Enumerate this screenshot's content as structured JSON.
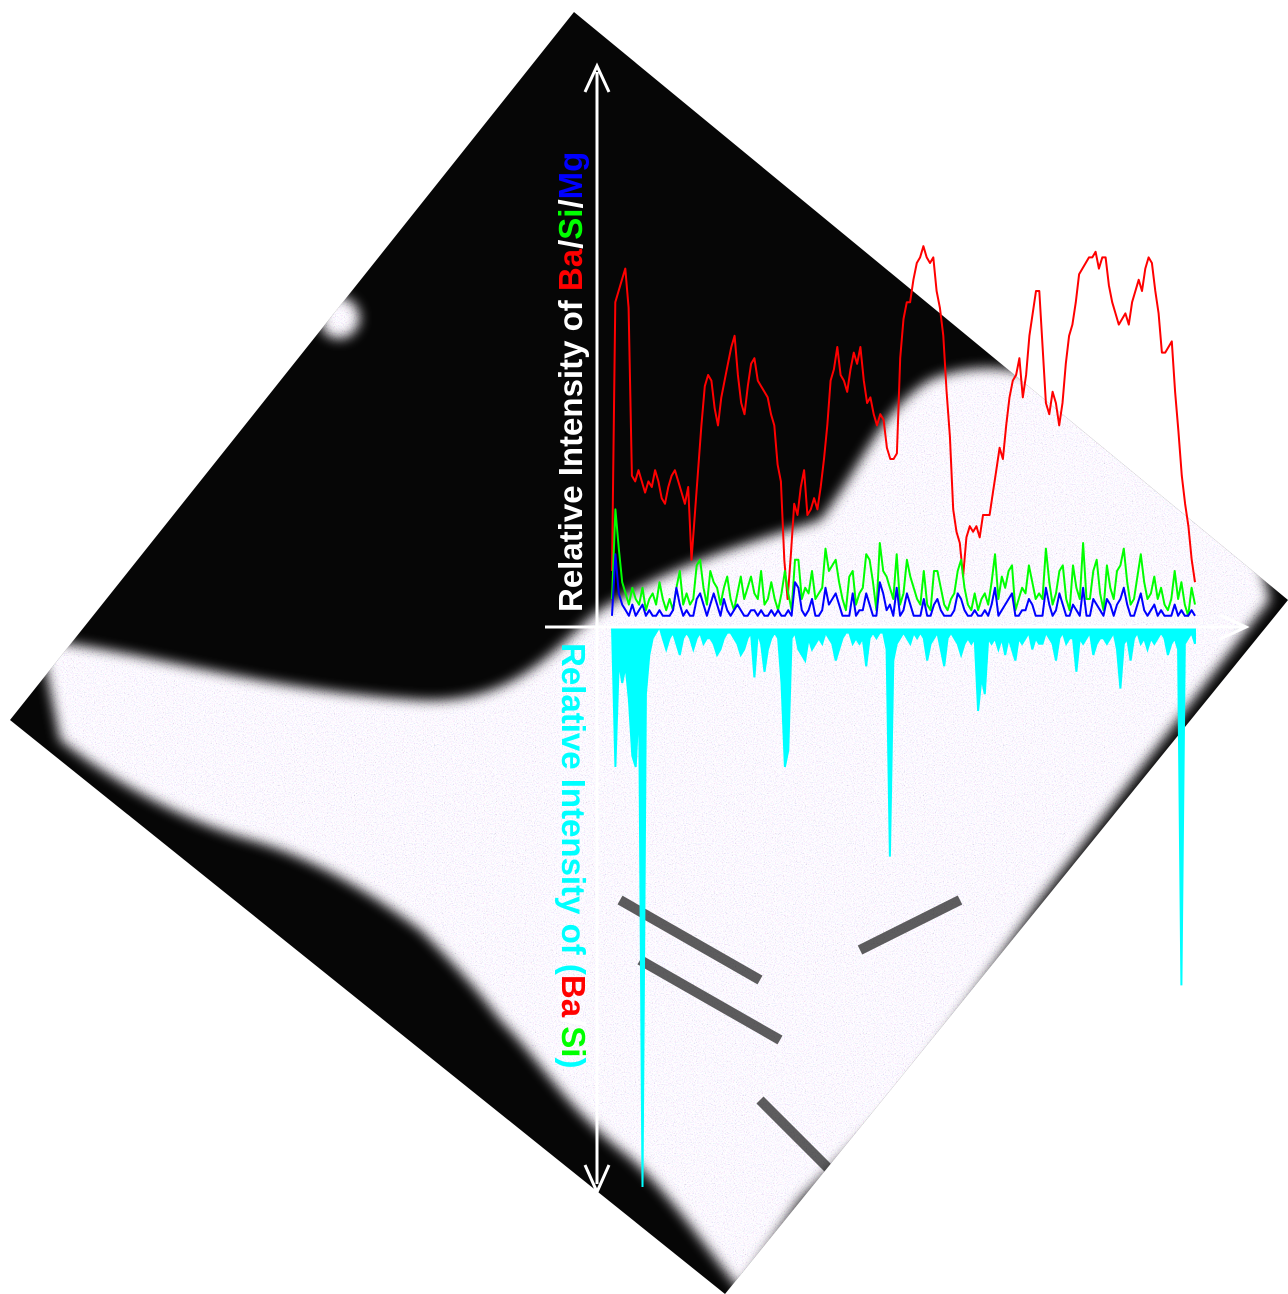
{
  "chart_data": {
    "type": "line",
    "title": "",
    "xlabel": "",
    "y_upper_label": {
      "prefix": "Relative Intensity of ",
      "parts": [
        {
          "text": "Ba",
          "color": "#ff0000"
        },
        {
          "text": "/",
          "color": "#ffffff"
        },
        {
          "text": "Si",
          "color": "#00ff00"
        },
        {
          "text": "/",
          "color": "#ffffff"
        },
        {
          "text": "Mg",
          "color": "#0000ff"
        }
      ]
    },
    "y_lower_label": {
      "prefix": "Relative Intensity of ",
      "parts": [
        {
          "text": "(",
          "color": "#00ffff"
        },
        {
          "text": "Ba",
          "color": "#ff0000"
        },
        {
          "text": "/",
          "color": "#ffffff"
        },
        {
          "text": "Si",
          "color": "#00ff00"
        },
        {
          "text": ")",
          "color": "#00ffff"
        }
      ]
    },
    "grid": false,
    "legend": "none",
    "ylim_upper": [
      0,
      100
    ],
    "ylim_lower": [
      0,
      100
    ],
    "series": [
      {
        "color": "#ff0000",
        "values": [
          10,
          58,
          60,
          62,
          64,
          57,
          27,
          26,
          28,
          26,
          24,
          26,
          25,
          28,
          26,
          23,
          22,
          25,
          27,
          28,
          26,
          24,
          22,
          25,
          12,
          20,
          28,
          36,
          43,
          45,
          44,
          39,
          36,
          41,
          44,
          47,
          50,
          52,
          45,
          40,
          38,
          43,
          47,
          48,
          44,
          43,
          42,
          41,
          38,
          36,
          29,
          26,
          12,
          5,
          13,
          22,
          20,
          25,
          28,
          20,
          21,
          23,
          21,
          25,
          30,
          36,
          44,
          46,
          50,
          45,
          44,
          42,
          46,
          49,
          47,
          50,
          44,
          40,
          41,
          38,
          36,
          38,
          37,
          32,
          30,
          30,
          31,
          48,
          55,
          58,
          58,
          62,
          65,
          66,
          68,
          66,
          65,
          66,
          60,
          57,
          52,
          42,
          34,
          21,
          17,
          15,
          9,
          16,
          18,
          17,
          18,
          16,
          20,
          20,
          20,
          24,
          28,
          32,
          30,
          36,
          41,
          44,
          45,
          48,
          41,
          45,
          52,
          56,
          60,
          60,
          50,
          40,
          38,
          42,
          40,
          36,
          40,
          47,
          52,
          54,
          58,
          63,
          64,
          65,
          66,
          66,
          67,
          64,
          66,
          66,
          61,
          58,
          56,
          54,
          55,
          56,
          54,
          58,
          60,
          62,
          60,
          64,
          66,
          65,
          60,
          56,
          49,
          49,
          50,
          51,
          42,
          35,
          27,
          22,
          18,
          12,
          8
        ],
        "baseline_level": 8
      },
      {
        "color": "#00ff00",
        "values": [
          5,
          21,
          14,
          8,
          6,
          4,
          7,
          5,
          4,
          7,
          3,
          5,
          6,
          4,
          8,
          5,
          3,
          5,
          3,
          7,
          10,
          4,
          6,
          4,
          5,
          11,
          12,
          7,
          4,
          10,
          8,
          7,
          4,
          7,
          9,
          5,
          3,
          6,
          9,
          5,
          7,
          9,
          6,
          5,
          10,
          4,
          5,
          8,
          5,
          3,
          6,
          10,
          6,
          3,
          12,
          12,
          5,
          7,
          6,
          10,
          5,
          6,
          7,
          14,
          10,
          11,
          12,
          8,
          5,
          3,
          9,
          10,
          4,
          6,
          7,
          13,
          12,
          8,
          3,
          15,
          10,
          9,
          7,
          5,
          13,
          4,
          6,
          12,
          9,
          7,
          5,
          4,
          10,
          4,
          3,
          10,
          10,
          7,
          4,
          3,
          5,
          6,
          10,
          12,
          7,
          4,
          3,
          6,
          3,
          5,
          6,
          4,
          8,
          13,
          5,
          9,
          7,
          10,
          11,
          3,
          5,
          7,
          6,
          11,
          8,
          5,
          6,
          5,
          14,
          8,
          4,
          6,
          10,
          11,
          5,
          3,
          11,
          7,
          5,
          15,
          5,
          5,
          10,
          12,
          6,
          3,
          11,
          7,
          5,
          10,
          11,
          14,
          8,
          4,
          5,
          9,
          13,
          8,
          5,
          6,
          9,
          5,
          7,
          4,
          3,
          5,
          10,
          5,
          8,
          4,
          2,
          7,
          4
        ],
        "baseline_level": 3
      },
      {
        "color": "#0000ff",
        "values": [
          2,
          13,
          6,
          4,
          3,
          2,
          4,
          2,
          3,
          4,
          2,
          3,
          2,
          2,
          3,
          2,
          2,
          2,
          3,
          7,
          4,
          2,
          3,
          2,
          2,
          5,
          6,
          4,
          2,
          4,
          6,
          4,
          2,
          5,
          3,
          2,
          3,
          4,
          3,
          2,
          2,
          3,
          3,
          2,
          3,
          2,
          2,
          3,
          2,
          3,
          2,
          2,
          3,
          2,
          8,
          7,
          3,
          2,
          3,
          5,
          2,
          2,
          3,
          7,
          4,
          5,
          6,
          4,
          2,
          2,
          2,
          6,
          2,
          3,
          3,
          6,
          4,
          2,
          2,
          8,
          6,
          3,
          4,
          2,
          7,
          2,
          3,
          6,
          4,
          2,
          2,
          2,
          5,
          2,
          2,
          4,
          5,
          3,
          2,
          2,
          2,
          3,
          6,
          5,
          3,
          2,
          2,
          3,
          2,
          2,
          3,
          2,
          4,
          7,
          2,
          3,
          4,
          5,
          6,
          2,
          2,
          3,
          3,
          5,
          4,
          2,
          2,
          2,
          7,
          4,
          2,
          3,
          6,
          4,
          2,
          2,
          4,
          3,
          2,
          7,
          2,
          2,
          5,
          4,
          3,
          2,
          5,
          4,
          2,
          4,
          5,
          7,
          4,
          2,
          2,
          4,
          6,
          3,
          2,
          3,
          4,
          2,
          3,
          2,
          2,
          2,
          4,
          2,
          3,
          2,
          2,
          3,
          2
        ],
        "baseline_level": 1
      },
      {
        "color": "#00ffff",
        "direction": "down",
        "values": [
          0,
          7,
          6,
          10,
          8,
          13,
          16,
          17,
          13,
          5,
          12,
          5,
          2,
          1,
          0,
          2,
          4,
          2,
          1,
          3,
          5,
          2,
          1,
          2,
          4,
          2,
          1,
          3,
          2,
          2,
          3,
          5,
          4,
          2,
          1,
          1,
          2,
          3,
          5,
          4,
          2,
          1,
          2,
          1,
          3,
          8,
          4,
          2,
          1,
          2,
          10,
          6,
          3,
          2,
          1,
          4,
          5,
          6,
          2,
          4,
          3,
          2,
          3,
          1,
          2,
          3,
          6,
          4,
          2,
          1,
          1,
          3,
          2,
          3,
          2,
          7,
          2,
          1,
          2,
          1,
          1,
          4,
          30,
          6,
          3,
          2,
          1,
          2,
          3,
          1,
          2,
          1,
          2,
          6,
          3,
          2,
          1,
          4,
          7,
          2,
          1,
          2,
          3,
          5,
          3,
          2,
          3,
          2,
          7,
          9,
          3,
          2,
          3,
          2,
          4,
          2,
          5,
          2,
          4,
          6,
          2,
          3,
          2,
          1,
          4,
          2,
          3,
          3,
          1,
          2,
          3,
          6,
          2,
          1,
          3,
          2,
          2,
          8,
          2,
          3,
          2,
          1,
          5,
          3,
          2,
          2,
          3,
          2,
          1,
          4,
          2,
          3,
          2,
          6,
          2,
          1,
          3,
          2,
          4,
          2,
          3,
          2,
          1,
          2,
          5,
          3,
          2,
          4,
          2,
          3,
          2,
          1,
          3
        ],
        "spikes": [
          {
            "index": 1,
            "value": 25
          },
          {
            "index": 4,
            "value": 7
          },
          {
            "index": 6,
            "value": 23
          },
          {
            "index": 7,
            "value": 25
          },
          {
            "index": 9,
            "value": 100
          },
          {
            "index": 42,
            "value": 9
          },
          {
            "index": 51,
            "value": 25
          },
          {
            "index": 52,
            "value": 22
          },
          {
            "index": 82,
            "value": 41
          },
          {
            "index": 108,
            "value": 15
          },
          {
            "index": 110,
            "value": 12
          },
          {
            "index": 150,
            "value": 11
          },
          {
            "index": 168,
            "value": 64
          }
        ]
      }
    ]
  },
  "background": {
    "description_colors": {
      "panel": "#050505",
      "particles": "#c8a0a8"
    }
  }
}
